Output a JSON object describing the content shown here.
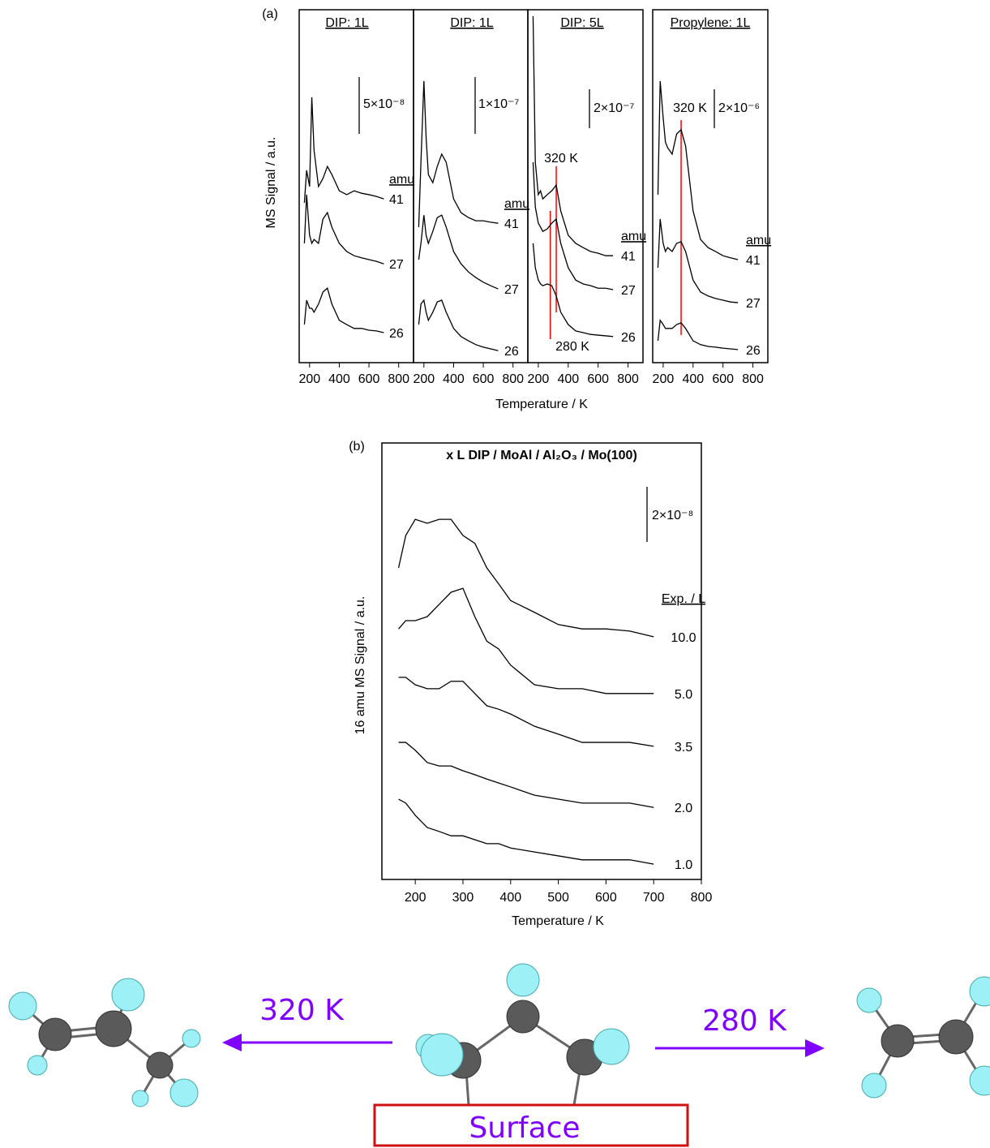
{
  "chart_data": [
    {
      "type": "line",
      "panel_label": "(a)",
      "title": "DIP: 1L",
      "ylabel": "MS Signal / a.u.",
      "xlabel": "Temperature / K",
      "x": [
        165,
        180,
        200,
        215,
        230,
        260,
        290,
        320,
        350,
        400,
        450,
        500,
        550,
        600,
        650,
        700
      ],
      "xlim": [
        130,
        900
      ],
      "xticks": [
        200,
        400,
        600,
        800
      ],
      "ylim": [
        0,
        100
      ],
      "legend_title": "amu",
      "scale_bar": "5×10⁻⁸",
      "series": [
        {
          "name": "41",
          "color": "#000000",
          "values": [
            45.3,
            54.5,
            49.9,
            75.2,
            60.2,
            49.9,
            52.2,
            55.6,
            53.3,
            48.7,
            47.6,
            48.7,
            48.0,
            47.6,
            47.1,
            46.4
          ]
        },
        {
          "name": "27",
          "color": "#000000",
          "values": [
            33.8,
            47.6,
            36.1,
            33.8,
            34.9,
            33.8,
            40.7,
            42.5,
            38.4,
            33.8,
            31.5,
            30.3,
            29.7,
            29.2,
            28.7,
            28.0
          ]
        },
        {
          "name": "26",
          "color": "#000000",
          "values": [
            10.8,
            17.7,
            15.4,
            15.4,
            14.3,
            16.6,
            20.0,
            21.1,
            16.6,
            12.0,
            10.8,
            9.7,
            9.7,
            9.2,
            9.0,
            8.5
          ]
        }
      ]
    },
    {
      "type": "line",
      "title": "DIP: 1L",
      "x": [
        165,
        180,
        200,
        215,
        230,
        260,
        290,
        320,
        350,
        400,
        450,
        500,
        550,
        600,
        650,
        700
      ],
      "xlim": [
        130,
        900
      ],
      "xticks": [
        200,
        400,
        600,
        800
      ],
      "ylim": [
        0,
        100
      ],
      "legend_title": "amu",
      "scale_bar": "1×10⁻⁷",
      "series": [
        {
          "name": "41",
          "color": "#000000",
          "values": [
            38.4,
            56.8,
            79.8,
            63.7,
            53.3,
            51.0,
            55.6,
            59.1,
            56.8,
            46.4,
            42.5,
            41.1,
            40.2,
            40.2,
            39.8,
            39.5
          ]
        },
        {
          "name": "27",
          "color": "#000000",
          "values": [
            29.2,
            33.8,
            41.8,
            36.1,
            33.8,
            37.2,
            41.1,
            41.8,
            38.4,
            31.5,
            28.0,
            25.7,
            24.1,
            22.8,
            21.8,
            20.9
          ]
        },
        {
          "name": "26",
          "color": "#000000",
          "values": [
            10.8,
            16.6,
            17.7,
            14.3,
            12.0,
            14.3,
            17.2,
            17.7,
            14.3,
            9.7,
            7.4,
            6.2,
            5.1,
            4.4,
            3.9,
            3.4
          ]
        }
      ]
    },
    {
      "type": "line",
      "title": "DIP: 5L",
      "x": [
        165,
        180,
        200,
        215,
        230,
        260,
        290,
        320,
        350,
        400,
        450,
        500,
        550,
        600,
        650,
        700
      ],
      "xlim": [
        130,
        900
      ],
      "xticks": [
        200,
        400,
        600,
        800
      ],
      "ylim": [
        0,
        100
      ],
      "legend_title": "amu",
      "scale_bar": "2×10⁻⁷",
      "markers": [
        {
          "x": 320,
          "label": "320 K",
          "color": "#ff0000"
        },
        {
          "x": 280,
          "label": "280 K",
          "color": "#ff0000"
        }
      ],
      "series": [
        {
          "name": "41",
          "color": "#000000",
          "values": [
            98.2,
            56.8,
            47.6,
            48.7,
            46.4,
            47.6,
            48.7,
            50.3,
            43.0,
            36.1,
            33.8,
            32.6,
            31.5,
            31.0,
            30.3,
            30.3
          ]
        },
        {
          "name": "27",
          "color": "#000000",
          "values": [
            56.8,
            44.1,
            39.5,
            38.4,
            37.2,
            37.9,
            39.5,
            40.7,
            33.8,
            26.9,
            23.4,
            22.3,
            21.8,
            21.1,
            21.1,
            20.7
          ]
        },
        {
          "name": "26",
          "color": "#000000",
          "values": [
            33.8,
            26.9,
            23.4,
            22.3,
            21.8,
            22.3,
            21.8,
            18.9,
            14.3,
            10.8,
            9.0,
            8.5,
            8.0,
            7.8,
            7.6,
            7.4
          ]
        }
      ]
    },
    {
      "type": "line",
      "title": "Propylene: 1L",
      "x": [
        165,
        180,
        200,
        215,
        230,
        260,
        290,
        320,
        350,
        400,
        450,
        500,
        550,
        600,
        650,
        700
      ],
      "xlim": [
        130,
        900
      ],
      "xticks": [
        200,
        400,
        600,
        800
      ],
      "ylim": [
        0,
        100
      ],
      "legend_title": "amu",
      "scale_bar": "2×10⁻⁶",
      "markers": [
        {
          "x": 320,
          "label": "320 K",
          "color": "#ff0000"
        }
      ],
      "series": [
        {
          "name": "41",
          "color": "#000000",
          "values": [
            47.6,
            79.8,
            69.4,
            62.5,
            60.9,
            59.1,
            64.8,
            66.0,
            61.4,
            43.0,
            34.9,
            32.6,
            31.5,
            30.3,
            29.7,
            29.2
          ]
        },
        {
          "name": "27",
          "color": "#000000",
          "values": [
            26.9,
            40.7,
            33.8,
            31.5,
            32.6,
            31.5,
            33.8,
            34.3,
            31.5,
            23.4,
            20.0,
            18.9,
            18.2,
            17.7,
            17.2,
            17.0
          ]
        },
        {
          "name": "26",
          "color": "#000000",
          "values": [
            6.2,
            12.0,
            10.8,
            9.7,
            9.7,
            9.7,
            10.8,
            11.3,
            9.7,
            6.2,
            5.1,
            4.6,
            4.4,
            4.1,
            3.9,
            3.7
          ]
        }
      ]
    },
    {
      "type": "line",
      "panel_label": "(b)",
      "title": "x L DIP / MoAl / Al₂O₃ / Mo(100)",
      "ylabel": "16 amu MS Signal / a.u.",
      "xlabel": "Temperature / K",
      "x": [
        165,
        180,
        200,
        225,
        250,
        275,
        300,
        325,
        350,
        375,
        400,
        450,
        500,
        550,
        600,
        650,
        700
      ],
      "xlim": [
        130,
        800
      ],
      "xticks": [
        200,
        300,
        400,
        500,
        600,
        700,
        800
      ],
      "ylim": [
        0,
        100
      ],
      "legend_title": "Exp. / L",
      "scale_bar": "2×10⁻⁸",
      "series": [
        {
          "name": "10.0",
          "color": "#000000",
          "values": [
            71.4,
            78.8,
            82.5,
            81.6,
            82.5,
            82.5,
            78.8,
            77.0,
            71.4,
            67.7,
            63.9,
            61.2,
            58.4,
            57.4,
            57.4,
            56.9,
            55.6
          ]
        },
        {
          "name": "5.0",
          "color": "#000000",
          "values": [
            57.4,
            59.3,
            59.3,
            60.2,
            63.0,
            65.8,
            66.7,
            60.2,
            54.6,
            52.8,
            49.1,
            44.6,
            43.7,
            43.7,
            42.6,
            42.6,
            42.6
          ]
        },
        {
          "name": "3.5",
          "color": "#000000",
          "values": [
            46.3,
            46.3,
            44.6,
            43.7,
            43.7,
            45.4,
            45.4,
            42.6,
            39.8,
            39.0,
            37.9,
            35.1,
            33.3,
            31.4,
            31.4,
            31.4,
            30.5
          ]
        },
        {
          "name": "2.0",
          "color": "#000000",
          "values": [
            31.4,
            31.4,
            29.6,
            26.8,
            26.0,
            26.0,
            24.9,
            24.0,
            23.0,
            22.1,
            21.2,
            19.3,
            18.4,
            17.5,
            17.5,
            17.5,
            16.5
          ]
        },
        {
          "name": "1.0",
          "color": "#000000",
          "values": [
            18.4,
            17.5,
            14.7,
            11.9,
            11.0,
            10.0,
            10.0,
            9.1,
            8.2,
            8.2,
            7.2,
            6.3,
            5.4,
            4.5,
            4.5,
            4.5,
            3.5
          ]
        }
      ]
    }
  ],
  "diagram": {
    "left_label": "320 K",
    "right_label": "280 K",
    "surface": "Surface"
  }
}
